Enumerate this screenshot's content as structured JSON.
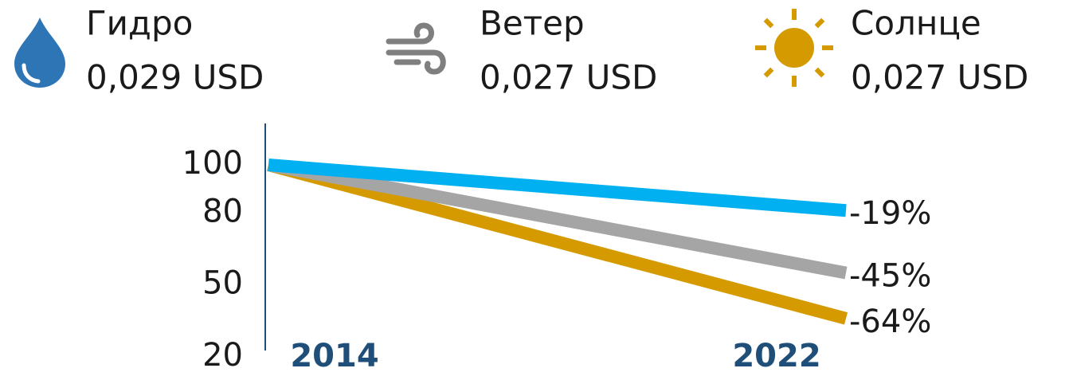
{
  "chart_data": {
    "type": "line",
    "categories": [
      "2014",
      "2022"
    ],
    "series": [
      {
        "name": "Гидро",
        "price": "0,029 USD",
        "color": "#00b0f0",
        "values": [
          100,
          81
        ],
        "change": -19,
        "change_label": "-19%"
      },
      {
        "name": "Ветер",
        "price": "0,027 USD",
        "color": "#a5a5a5",
        "values": [
          100,
          55
        ],
        "change": -45,
        "change_label": "-45%"
      },
      {
        "name": "Солнце",
        "price": "0,027 USD",
        "color": "#d49a00",
        "values": [
          100,
          36
        ],
        "change": -64,
        "change_label": "-64%"
      }
    ],
    "ylim": [
      20,
      100
    ],
    "yticks": [
      20,
      50,
      80,
      100
    ]
  }
}
